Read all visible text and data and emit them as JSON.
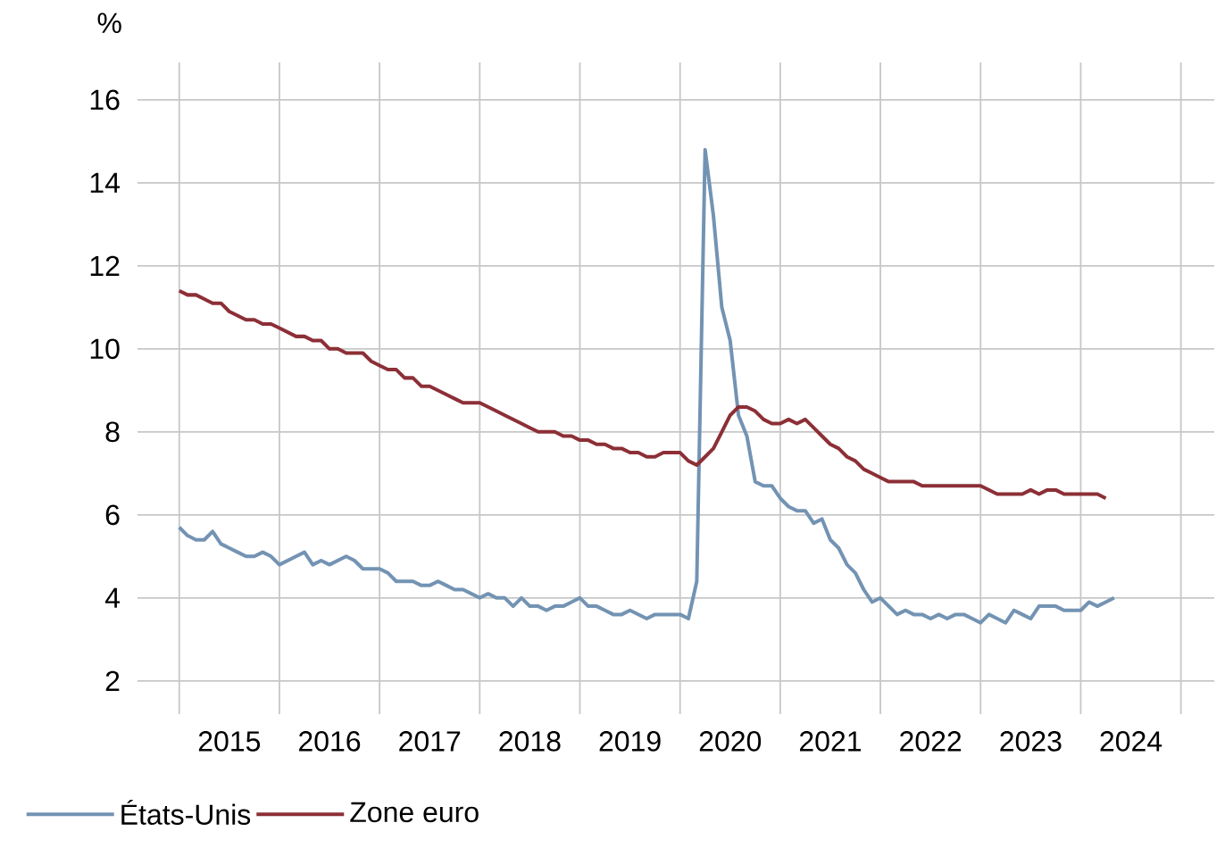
{
  "chart_data": {
    "type": "line",
    "ylabel": "%",
    "x": [
      "2015-01",
      "2015-02",
      "2015-03",
      "2015-04",
      "2015-05",
      "2015-06",
      "2015-07",
      "2015-08",
      "2015-09",
      "2015-10",
      "2015-11",
      "2015-12",
      "2016-01",
      "2016-02",
      "2016-03",
      "2016-04",
      "2016-05",
      "2016-06",
      "2016-07",
      "2016-08",
      "2016-09",
      "2016-10",
      "2016-11",
      "2016-12",
      "2017-01",
      "2017-02",
      "2017-03",
      "2017-04",
      "2017-05",
      "2017-06",
      "2017-07",
      "2017-08",
      "2017-09",
      "2017-10",
      "2017-11",
      "2017-12",
      "2018-01",
      "2018-02",
      "2018-03",
      "2018-04",
      "2018-05",
      "2018-06",
      "2018-07",
      "2018-08",
      "2018-09",
      "2018-10",
      "2018-11",
      "2018-12",
      "2019-01",
      "2019-02",
      "2019-03",
      "2019-04",
      "2019-05",
      "2019-06",
      "2019-07",
      "2019-08",
      "2019-09",
      "2019-10",
      "2019-11",
      "2019-12",
      "2020-01",
      "2020-02",
      "2020-03",
      "2020-04",
      "2020-05",
      "2020-06",
      "2020-07",
      "2020-08",
      "2020-09",
      "2020-10",
      "2020-11",
      "2020-12",
      "2021-01",
      "2021-02",
      "2021-03",
      "2021-04",
      "2021-05",
      "2021-06",
      "2021-07",
      "2021-08",
      "2021-09",
      "2021-10",
      "2021-11",
      "2021-12",
      "2022-01",
      "2022-02",
      "2022-03",
      "2022-04",
      "2022-05",
      "2022-06",
      "2022-07",
      "2022-08",
      "2022-09",
      "2022-10",
      "2022-11",
      "2022-12",
      "2023-01",
      "2023-02",
      "2023-03",
      "2023-04",
      "2023-05",
      "2023-06",
      "2023-07",
      "2023-08",
      "2023-09",
      "2023-10",
      "2023-11",
      "2023-12",
      "2024-01",
      "2024-02",
      "2024-03",
      "2024-04",
      "2024-05"
    ],
    "series": [
      {
        "name": "États-Unis",
        "color": "#7393b3",
        "values": [
          5.7,
          5.5,
          5.4,
          5.4,
          5.6,
          5.3,
          5.2,
          5.1,
          5.0,
          5.0,
          5.1,
          5.0,
          4.8,
          4.9,
          5.0,
          5.1,
          4.8,
          4.9,
          4.8,
          4.9,
          5.0,
          4.9,
          4.7,
          4.7,
          4.7,
          4.6,
          4.4,
          4.4,
          4.4,
          4.3,
          4.3,
          4.4,
          4.3,
          4.2,
          4.2,
          4.1,
          4.0,
          4.1,
          4.0,
          4.0,
          3.8,
          4.0,
          3.8,
          3.8,
          3.7,
          3.8,
          3.8,
          3.9,
          4.0,
          3.8,
          3.8,
          3.7,
          3.6,
          3.6,
          3.7,
          3.6,
          3.5,
          3.6,
          3.6,
          3.6,
          3.6,
          3.5,
          4.4,
          14.8,
          13.2,
          11.0,
          10.2,
          8.4,
          7.9,
          6.8,
          6.7,
          6.7,
          6.4,
          6.2,
          6.1,
          6.1,
          5.8,
          5.9,
          5.4,
          5.2,
          4.8,
          4.6,
          4.2,
          3.9,
          4.0,
          3.8,
          3.6,
          3.7,
          3.6,
          3.6,
          3.5,
          3.6,
          3.5,
          3.6,
          3.6,
          3.5,
          3.4,
          3.6,
          3.5,
          3.4,
          3.7,
          3.6,
          3.5,
          3.8,
          3.8,
          3.8,
          3.7,
          3.7,
          3.7,
          3.9,
          3.8,
          3.9,
          4.0
        ]
      },
      {
        "name": "Zone euro",
        "color": "#8c2f36",
        "values": [
          11.4,
          11.3,
          11.3,
          11.2,
          11.1,
          11.1,
          10.9,
          10.8,
          10.7,
          10.7,
          10.6,
          10.6,
          10.5,
          10.4,
          10.3,
          10.3,
          10.2,
          10.2,
          10.0,
          10.0,
          9.9,
          9.9,
          9.9,
          9.7,
          9.6,
          9.5,
          9.5,
          9.3,
          9.3,
          9.1,
          9.1,
          9.0,
          8.9,
          8.8,
          8.7,
          8.7,
          8.7,
          8.6,
          8.5,
          8.4,
          8.3,
          8.2,
          8.1,
          8.0,
          8.0,
          8.0,
          7.9,
          7.9,
          7.8,
          7.8,
          7.7,
          7.7,
          7.6,
          7.6,
          7.5,
          7.5,
          7.4,
          7.4,
          7.5,
          7.5,
          7.5,
          7.3,
          7.2,
          7.4,
          7.6,
          8.0,
          8.4,
          8.6,
          8.6,
          8.5,
          8.3,
          8.2,
          8.2,
          8.3,
          8.2,
          8.3,
          8.1,
          7.9,
          7.7,
          7.6,
          7.4,
          7.3,
          7.1,
          7.0,
          6.9,
          6.8,
          6.8,
          6.8,
          6.8,
          6.7,
          6.7,
          6.7,
          6.7,
          6.7,
          6.7,
          6.7,
          6.7,
          6.6,
          6.5,
          6.5,
          6.5,
          6.5,
          6.6,
          6.5,
          6.6,
          6.6,
          6.5,
          6.5,
          6.5,
          6.5,
          6.5,
          6.4,
          null
        ]
      }
    ],
    "xlim": [
      "2014-08",
      "2025-05"
    ],
    "xticks": [
      {
        "value": "2015-01",
        "label": null
      },
      {
        "value": "2015-07",
        "label": "2015"
      },
      {
        "value": "2016-01",
        "label": null
      },
      {
        "value": "2016-07",
        "label": "2016"
      },
      {
        "value": "2017-01",
        "label": null
      },
      {
        "value": "2017-07",
        "label": "2017"
      },
      {
        "value": "2018-01",
        "label": null
      },
      {
        "value": "2018-07",
        "label": "2018"
      },
      {
        "value": "2019-01",
        "label": null
      },
      {
        "value": "2019-07",
        "label": "2019"
      },
      {
        "value": "2020-01",
        "label": null
      },
      {
        "value": "2020-07",
        "label": "2020"
      },
      {
        "value": "2021-01",
        "label": null
      },
      {
        "value": "2021-07",
        "label": "2021"
      },
      {
        "value": "2022-01",
        "label": null
      },
      {
        "value": "2022-07",
        "label": "2022"
      },
      {
        "value": "2023-01",
        "label": null
      },
      {
        "value": "2023-07",
        "label": "2023"
      },
      {
        "value": "2024-01",
        "label": null
      },
      {
        "value": "2024-07",
        "label": "2024"
      },
      {
        "value": "2025-01",
        "label": null
      }
    ],
    "ylim": [
      1.2,
      16.9
    ],
    "yticks": [
      2,
      4,
      6,
      8,
      10,
      12,
      14,
      16
    ],
    "grid": true,
    "legend": "bottom",
    "marker": "none",
    "line_style": "solid"
  }
}
